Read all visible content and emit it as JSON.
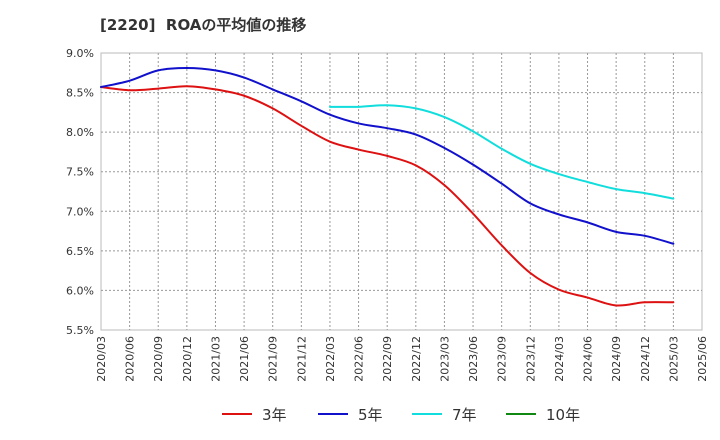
{
  "chart_data": {
    "type": "line",
    "title": "[2220]  ROAの平均値の推移",
    "xlabel": "",
    "ylabel": "",
    "ylim": [
      5.5,
      9.0
    ],
    "yticks": [
      "5.5%",
      "6.0%",
      "6.5%",
      "7.0%",
      "7.5%",
      "8.0%",
      "8.5%",
      "9.0%"
    ],
    "ytick_values": [
      5.5,
      6.0,
      6.5,
      7.0,
      7.5,
      8.0,
      8.5,
      9.0
    ],
    "x": [
      "2020/03",
      "2020/06",
      "2020/09",
      "2020/12",
      "2021/03",
      "2021/06",
      "2021/09",
      "2021/12",
      "2022/03",
      "2022/06",
      "2022/09",
      "2022/12",
      "2023/03",
      "2023/06",
      "2023/09",
      "2023/12",
      "2024/03",
      "2024/06",
      "2024/09",
      "2024/12",
      "2025/03",
      "2025/06"
    ],
    "grid": true,
    "legend_position": "bottom",
    "series": [
      {
        "name": "3年",
        "color": "#dd1111",
        "values": [
          8.57,
          8.53,
          8.55,
          8.58,
          8.54,
          8.46,
          8.3,
          8.08,
          7.88,
          7.78,
          7.7,
          7.58,
          7.33,
          6.97,
          6.57,
          6.22,
          6.01,
          5.91,
          5.81,
          5.85,
          5.85,
          null
        ]
      },
      {
        "name": "5年",
        "color": "#1111cc",
        "values": [
          8.57,
          8.65,
          8.78,
          8.81,
          8.78,
          8.69,
          8.54,
          8.39,
          8.22,
          8.11,
          8.05,
          7.97,
          7.8,
          7.59,
          7.35,
          7.1,
          6.96,
          6.86,
          6.74,
          6.69,
          6.59,
          null
        ]
      },
      {
        "name": "7年",
        "color": "#11dddd",
        "values": [
          null,
          null,
          null,
          null,
          null,
          null,
          null,
          null,
          8.32,
          8.32,
          8.34,
          8.3,
          8.19,
          8.01,
          7.79,
          7.6,
          7.47,
          7.37,
          7.28,
          7.23,
          7.16,
          null
        ]
      },
      {
        "name": "10年",
        "color": "#118811",
        "values": [
          null,
          null,
          null,
          null,
          null,
          null,
          null,
          null,
          null,
          null,
          null,
          null,
          null,
          null,
          null,
          null,
          null,
          null,
          null,
          null,
          null,
          null
        ]
      }
    ]
  }
}
